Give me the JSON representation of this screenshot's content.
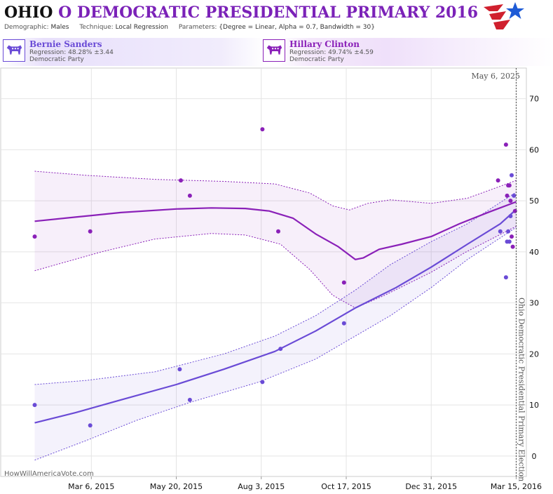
{
  "header": {
    "title_state": "OHIO",
    "title_rest": "O DEMOCRATIC PRESIDENTIAL PRIMARY 2016",
    "demographic_label": "Demographic:",
    "demographic_value": "Males",
    "technique_label": "Technique:",
    "technique_value": "Local Regression",
    "parameters_label": "Parameters:",
    "parameters_value": "{Degree = Linear, Alpha = 0.7, Bandwidth = 30}"
  },
  "candidates": [
    {
      "name": "Bernie Sanders",
      "regression": "Regression: 48.28% ±3.44",
      "party": "Democratic Party",
      "color": "#6a4bd6"
    },
    {
      "name": "Hillary Clinton",
      "regression": "Regression: 49.74% ±4.59",
      "party": "Democratic Party",
      "color": "#8a20b8"
    }
  ],
  "watermark": "HowWillAmericaVote.com",
  "chart_data": {
    "type": "line",
    "x_type": "date",
    "xlim": [
      "2014-12-16",
      "2016-03-24"
    ],
    "ylim": [
      -4,
      76
    ],
    "x_ticks": [
      {
        "date": "2015-03-06",
        "label": "Mar 6, 2015"
      },
      {
        "date": "2015-05-20",
        "label": "May 20, 2015"
      },
      {
        "date": "2015-08-03",
        "label": "Aug 3, 2015"
      },
      {
        "date": "2015-10-17",
        "label": "Oct 17, 2015"
      },
      {
        "date": "2015-12-31",
        "label": "Dec 31, 2015"
      },
      {
        "date": "2016-03-15",
        "label": "Mar 15, 2016"
      }
    ],
    "y_ticks": [
      0,
      10,
      20,
      30,
      40,
      50,
      60,
      70
    ],
    "grid": true,
    "event_line": {
      "date": "2016-03-15",
      "label": "Ohio Democratic Presidential Primary Election"
    },
    "current_date_label": "May 6, 2025",
    "series": [
      {
        "name": "Hillary Clinton",
        "color": "#8a20b8",
        "points": [
          [
            "2015-01-15",
            43
          ],
          [
            "2015-03-05",
            44
          ],
          [
            "2015-05-24",
            54
          ],
          [
            "2015-06-01",
            51
          ],
          [
            "2015-08-04",
            64
          ],
          [
            "2015-08-18",
            44
          ],
          [
            "2015-10-15",
            34
          ],
          [
            "2016-03-06",
            61
          ],
          [
            "2016-03-07",
            51
          ],
          [
            "2016-03-08",
            53
          ],
          [
            "2016-03-09",
            53
          ],
          [
            "2016-03-10",
            50
          ],
          [
            "2016-03-11",
            43
          ],
          [
            "2016-03-12",
            41
          ],
          [
            "2016-03-14",
            48
          ],
          [
            "2016-02-28",
            54
          ]
        ],
        "fit": [
          [
            "2015-01-15",
            46
          ],
          [
            "2015-02-20",
            46.8
          ],
          [
            "2015-04-01",
            47.7
          ],
          [
            "2015-05-20",
            48.4
          ],
          [
            "2015-06-20",
            48.6
          ],
          [
            "2015-07-20",
            48.5
          ],
          [
            "2015-08-10",
            48.0
          ],
          [
            "2015-08-31",
            46.6
          ],
          [
            "2015-09-20",
            43.5
          ],
          [
            "2015-10-10",
            41.0
          ],
          [
            "2015-10-25",
            38.5
          ],
          [
            "2015-11-01",
            38.8
          ],
          [
            "2015-11-15",
            40.5
          ],
          [
            "2015-12-05",
            41.5
          ],
          [
            "2015-12-31",
            43.0
          ],
          [
            "2016-01-25",
            45.5
          ],
          [
            "2016-02-20",
            47.8
          ],
          [
            "2016-03-15",
            49.8
          ]
        ],
        "upper": [
          [
            "2015-01-15",
            55.8
          ],
          [
            "2015-03-01",
            55
          ],
          [
            "2015-05-01",
            54.2
          ],
          [
            "2015-07-01",
            53.8
          ],
          [
            "2015-08-15",
            53.3
          ],
          [
            "2015-09-15",
            51.5
          ],
          [
            "2015-10-05",
            49
          ],
          [
            "2015-10-20",
            48.2
          ],
          [
            "2015-11-05",
            49.5
          ],
          [
            "2015-11-25",
            50.2
          ],
          [
            "2015-12-31",
            49.5
          ],
          [
            "2016-02-01",
            50.5
          ],
          [
            "2016-03-15",
            54
          ]
        ],
        "lower": [
          [
            "2015-01-15",
            36.3
          ],
          [
            "2015-03-15",
            40
          ],
          [
            "2015-05-01",
            42.5
          ],
          [
            "2015-06-20",
            43.6
          ],
          [
            "2015-07-20",
            43.3
          ],
          [
            "2015-08-20",
            41.5
          ],
          [
            "2015-09-15",
            36.5
          ],
          [
            "2015-10-05",
            31.5
          ],
          [
            "2015-10-25",
            29
          ],
          [
            "2015-11-20",
            31.5
          ],
          [
            "2015-12-31",
            36
          ],
          [
            "2016-01-31",
            40
          ],
          [
            "2016-03-15",
            45
          ]
        ]
      },
      {
        "name": "Bernie Sanders",
        "color": "#6a4bd6",
        "points": [
          [
            "2015-01-15",
            10
          ],
          [
            "2015-03-05",
            6
          ],
          [
            "2015-05-23",
            17
          ],
          [
            "2015-06-01",
            11
          ],
          [
            "2015-08-04",
            14.5
          ],
          [
            "2015-08-20",
            21
          ],
          [
            "2015-10-15",
            26
          ],
          [
            "2016-03-01",
            44
          ],
          [
            "2016-03-06",
            35
          ],
          [
            "2016-03-07",
            42
          ],
          [
            "2016-03-08",
            44
          ],
          [
            "2016-03-09",
            42
          ],
          [
            "2016-03-10",
            47
          ],
          [
            "2016-03-11",
            55
          ],
          [
            "2016-03-13",
            51
          ]
        ],
        "fit": [
          [
            "2015-01-15",
            6.5
          ],
          [
            "2015-02-20",
            8.5
          ],
          [
            "2015-04-01",
            11
          ],
          [
            "2015-05-20",
            14
          ],
          [
            "2015-07-01",
            17
          ],
          [
            "2015-08-15",
            20.5
          ],
          [
            "2015-09-20",
            24.5
          ],
          [
            "2015-10-25",
            29
          ],
          [
            "2015-11-30",
            33
          ],
          [
            "2015-12-31",
            37
          ],
          [
            "2016-02-01",
            41.5
          ],
          [
            "2016-03-01",
            45.5
          ],
          [
            "2016-03-15",
            48.3
          ]
        ],
        "upper": [
          [
            "2015-01-15",
            14
          ],
          [
            "2015-03-01",
            14.8
          ],
          [
            "2015-05-01",
            16.5
          ],
          [
            "2015-07-01",
            20
          ],
          [
            "2015-08-15",
            23.5
          ],
          [
            "2015-09-20",
            27.5
          ],
          [
            "2015-10-25",
            32.5
          ],
          [
            "2015-11-25",
            37.5
          ],
          [
            "2015-12-31",
            42
          ],
          [
            "2016-02-01",
            45.5
          ],
          [
            "2016-03-15",
            51.7
          ]
        ],
        "lower": [
          [
            "2015-01-15",
            -0.8
          ],
          [
            "2015-03-01",
            3
          ],
          [
            "2015-04-15",
            7
          ],
          [
            "2015-06-01",
            10.5
          ],
          [
            "2015-08-01",
            14.5
          ],
          [
            "2015-09-20",
            19
          ],
          [
            "2015-10-25",
            23.5
          ],
          [
            "2015-11-25",
            27.5
          ],
          [
            "2015-12-31",
            33
          ],
          [
            "2016-02-01",
            38.5
          ],
          [
            "2016-03-15",
            44.8
          ]
        ]
      }
    ]
  }
}
